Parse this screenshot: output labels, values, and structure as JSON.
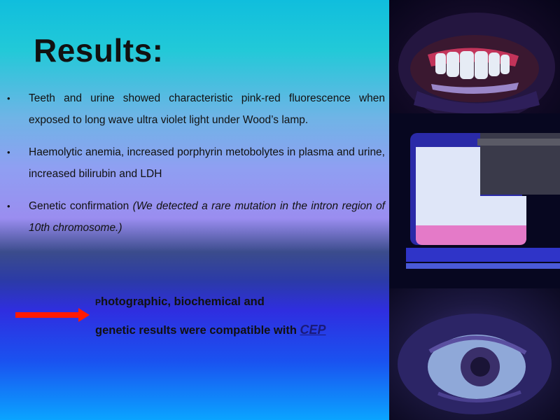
{
  "slide": {
    "title": "Results:",
    "bullet_glyph": "•",
    "bullets": [
      {
        "text": "Teeth and urine showed characteristic pink-red fluorescence when exposed to long wave ultra violet light under Wood’s lamp.",
        "italic": ""
      },
      {
        "text": "Haemolytic anemia, increased porphyrin metobolytes in plasma and urine, increased bilirubin and LDH",
        "italic": ""
      },
      {
        "text": "Genetic confirmation ",
        "italic": "(We detected a rare mutation in the intron region of 10th chromosome.)"
      }
    ],
    "conclusion": {
      "line1_first_letter": "P",
      "line1_rest": "hotographic, biochemical and",
      "line2": "genetic results were compatible with",
      "highlight": "CEP"
    },
    "arrow_color": "#ff1a00",
    "images": {
      "teeth": "teeth-fluorescence-photo",
      "urine": "urine-fluorescence-photo",
      "eye": "eye-fluorescence-photo"
    }
  }
}
